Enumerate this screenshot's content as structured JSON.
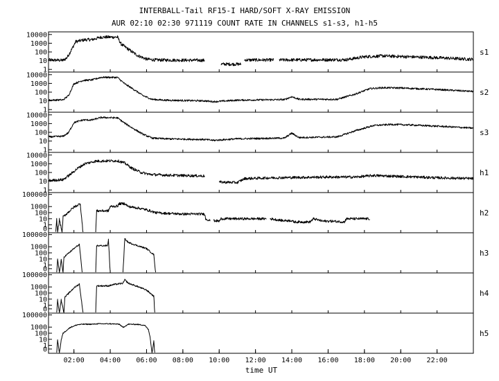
{
  "header": {
    "title_line1": "INTERBALL-Tail RF15-I HARD/SOFT X-RAY EMISSION",
    "title_line2": "AUR 02:10 02:30 971119  COUNT RATE IN CHANNELS s1-s3, h1-h5"
  },
  "chart_data": {
    "type": "line",
    "title": "INTERBALL-Tail RF15-I HARD/SOFT X-RAY EMISSION",
    "subtitle": "AUR 02:10 02:30 971119  COUNT RATE IN CHANNELS s1-s3, h1-h5",
    "xlabel": "time UT",
    "x_ticks": [
      "02:00",
      "04:00",
      "06:00",
      "08:00",
      "10:00",
      "12:00",
      "14:00",
      "16:00",
      "18:00",
      "20:00",
      "22:00"
    ],
    "x_tick_hours": [
      2,
      4,
      6,
      8,
      10,
      12,
      14,
      16,
      18,
      20,
      22
    ],
    "xlim_hours": [
      0.6,
      24
    ],
    "y_scale": "log",
    "panels": [
      {
        "name": "s1",
        "y_ticks": [
          "10000",
          "1000",
          "100",
          "10",
          "1"
        ],
        "y_tick_values": [
          10000,
          1000,
          100,
          10,
          1
        ],
        "ylim": [
          0.5,
          20000
        ],
        "noise": 0.18,
        "series": [
          [
            0.6,
            12
          ],
          [
            1.4,
            11
          ],
          [
            1.6,
            20
          ],
          [
            1.8,
            100
          ],
          [
            2.1,
            1500
          ],
          [
            2.6,
            2500
          ],
          [
            3.0,
            2600
          ],
          [
            3.5,
            5000
          ],
          [
            4.4,
            5000
          ],
          [
            4.6,
            800
          ],
          [
            5.0,
            200
          ],
          [
            5.5,
            40
          ],
          [
            6.0,
            15
          ],
          [
            6.5,
            12
          ],
          [
            9.2,
            11
          ],
          [
            9.25,
            null
          ],
          [
            9.7,
            8
          ],
          [
            9.8,
            null
          ],
          [
            10.1,
            4
          ],
          [
            11.2,
            4
          ],
          [
            11.3,
            null
          ],
          [
            11.4,
            12
          ],
          [
            13.0,
            12
          ],
          [
            13.2,
            null
          ],
          [
            13.3,
            12
          ],
          [
            17.0,
            13
          ],
          [
            18.0,
            28
          ],
          [
            19.0,
            35
          ],
          [
            20.0,
            30
          ],
          [
            22.0,
            22
          ],
          [
            24.0,
            14
          ]
        ]
      },
      {
        "name": "s2",
        "y_ticks": [
          "10000",
          "1000",
          "100",
          "10",
          "1"
        ],
        "y_tick_values": [
          10000,
          1000,
          100,
          10,
          1
        ],
        "ylim": [
          0.5,
          20000
        ],
        "noise": 0.1,
        "series": [
          [
            0.6,
            12
          ],
          [
            1.4,
            13
          ],
          [
            1.7,
            40
          ],
          [
            2.0,
            900
          ],
          [
            2.5,
            2200
          ],
          [
            3.0,
            2500
          ],
          [
            3.5,
            5000
          ],
          [
            4.4,
            4800
          ],
          [
            4.8,
            900
          ],
          [
            5.3,
            200
          ],
          [
            5.8,
            40
          ],
          [
            6.3,
            15
          ],
          [
            7.0,
            12
          ],
          [
            9.2,
            10
          ],
          [
            9.7,
            8
          ],
          [
            11.0,
            12
          ],
          [
            13.6,
            14
          ],
          [
            14.0,
            30
          ],
          [
            14.4,
            15
          ],
          [
            16.5,
            15
          ],
          [
            17.5,
            60
          ],
          [
            18.3,
            250
          ],
          [
            19.0,
            320
          ],
          [
            20.0,
            300
          ],
          [
            22.0,
            200
          ],
          [
            24.0,
            120
          ]
        ]
      },
      {
        "name": "s3",
        "y_ticks": [
          "10000",
          "1000",
          "100",
          "10",
          "1"
        ],
        "y_tick_values": [
          10000,
          1000,
          100,
          10,
          1
        ],
        "ylim": [
          0.5,
          20000
        ],
        "noise": 0.1,
        "series": [
          [
            0.6,
            30
          ],
          [
            1.4,
            35
          ],
          [
            1.7,
            90
          ],
          [
            2.0,
            1300
          ],
          [
            2.5,
            2600
          ],
          [
            3.0,
            2600
          ],
          [
            3.5,
            5000
          ],
          [
            4.4,
            4500
          ],
          [
            4.8,
            1100
          ],
          [
            5.3,
            250
          ],
          [
            5.8,
            60
          ],
          [
            6.3,
            22
          ],
          [
            7.0,
            18
          ],
          [
            9.2,
            15
          ],
          [
            9.7,
            12
          ],
          [
            11.0,
            18
          ],
          [
            13.6,
            22
          ],
          [
            14.0,
            80
          ],
          [
            14.4,
            25
          ],
          [
            16.5,
            30
          ],
          [
            17.5,
            150
          ],
          [
            18.5,
            600
          ],
          [
            19.5,
            800
          ],
          [
            20.5,
            700
          ],
          [
            22.5,
            450
          ],
          [
            24.0,
            300
          ]
        ]
      },
      {
        "name": "h1",
        "y_ticks": [
          "10000",
          "1000",
          "100",
          "10",
          "1"
        ],
        "y_tick_values": [
          10000,
          1000,
          100,
          10,
          1
        ],
        "ylim": [
          0.5,
          20000
        ],
        "noise": 0.15,
        "series": [
          [
            0.6,
            12
          ],
          [
            1.4,
            15
          ],
          [
            1.8,
            60
          ],
          [
            2.2,
            300
          ],
          [
            2.6,
            1000
          ],
          [
            3.2,
            2000
          ],
          [
            4.4,
            2200
          ],
          [
            4.8,
            1200
          ],
          [
            5.2,
            300
          ],
          [
            5.7,
            100
          ],
          [
            6.2,
            60
          ],
          [
            7.0,
            50
          ],
          [
            8.0,
            45
          ],
          [
            9.2,
            40
          ],
          [
            9.5,
            null
          ],
          [
            9.7,
            20
          ],
          [
            9.8,
            null
          ],
          [
            10.0,
            8
          ],
          [
            11.0,
            7
          ],
          [
            11.4,
            20
          ],
          [
            13.0,
            25
          ],
          [
            16.0,
            30
          ],
          [
            17.5,
            30
          ],
          [
            18.5,
            45
          ],
          [
            20.0,
            35
          ],
          [
            22.0,
            25
          ],
          [
            24.0,
            20
          ]
        ]
      },
      {
        "name": "h2",
        "y_ticks": [
          "100000",
          "1000",
          "100",
          "10",
          "1",
          "0"
        ],
        "y_tick_values": [
          100000,
          1000,
          100,
          10,
          1,
          0.25
        ],
        "ylim": [
          0.05,
          200000
        ],
        "noise": 0.2,
        "series": [
          [
            0.9,
            null
          ],
          [
            1.0,
            0.05
          ],
          [
            1.05,
            8
          ],
          [
            1.1,
            0.05
          ],
          [
            1.2,
            8
          ],
          [
            1.35,
            0.05
          ],
          [
            1.4,
            20
          ],
          [
            2.0,
            800
          ],
          [
            2.35,
            3000
          ],
          [
            2.5,
            0.05
          ],
          [
            2.6,
            null
          ],
          [
            3.2,
            0.05
          ],
          [
            3.25,
            200
          ],
          [
            3.9,
            200
          ],
          [
            4.0,
            1000
          ],
          [
            4.4,
            1200
          ],
          [
            4.5,
            3000
          ],
          [
            4.8,
            3000
          ],
          [
            5.0,
            1000
          ],
          [
            5.5,
            600
          ],
          [
            6.0,
            300
          ],
          [
            6.5,
            100
          ],
          [
            7.0,
            80
          ],
          [
            8.0,
            60
          ],
          [
            9.2,
            60
          ],
          [
            9.25,
            10
          ],
          [
            9.5,
            5
          ],
          [
            9.55,
            null
          ],
          [
            9.7,
            5
          ],
          [
            10.0,
            4
          ],
          [
            10.1,
            10
          ],
          [
            12.6,
            10
          ],
          [
            12.7,
            null
          ],
          [
            12.8,
            10
          ],
          [
            13.5,
            5
          ],
          [
            14.0,
            5
          ],
          [
            14.1,
            3
          ],
          [
            15.0,
            3
          ],
          [
            15.2,
            10
          ],
          [
            15.7,
            4
          ],
          [
            16.2,
            4
          ],
          [
            16.9,
            3
          ],
          [
            17.0,
            10
          ],
          [
            18.3,
            10
          ],
          [
            18.35,
            null
          ]
        ]
      },
      {
        "name": "h3",
        "y_ticks": [
          "100000",
          "1000",
          "100",
          "10",
          "1",
          "0"
        ],
        "y_tick_values": [
          100000,
          1000,
          100,
          10,
          1,
          0.25
        ],
        "ylim": [
          0.05,
          200000
        ],
        "noise": 0.12,
        "series": [
          [
            1.0,
            null
          ],
          [
            1.05,
            0.05
          ],
          [
            1.1,
            8
          ],
          [
            1.2,
            0.05
          ],
          [
            1.3,
            8
          ],
          [
            1.4,
            0.05
          ],
          [
            1.45,
            20
          ],
          [
            2.0,
            500
          ],
          [
            2.3,
            2500
          ],
          [
            2.45,
            0.05
          ],
          [
            2.55,
            null
          ],
          [
            3.2,
            0.05
          ],
          [
            3.25,
            1500
          ],
          [
            3.85,
            1500
          ],
          [
            3.9,
            15000
          ],
          [
            4.0,
            0.05
          ],
          [
            4.1,
            null
          ],
          [
            4.7,
            0.05
          ],
          [
            4.8,
            20000
          ],
          [
            5.0,
            5000
          ],
          [
            5.5,
            1500
          ],
          [
            6.0,
            500
          ],
          [
            6.4,
            50
          ],
          [
            6.5,
            0.05
          ],
          [
            6.55,
            null
          ]
        ]
      },
      {
        "name": "h4",
        "y_ticks": [
          "100000",
          "1000",
          "100",
          "10",
          "1",
          "0"
        ],
        "y_tick_values": [
          100000,
          1000,
          100,
          10,
          1,
          0.25
        ],
        "ylim": [
          0.05,
          200000
        ],
        "noise": 0.12,
        "series": [
          [
            1.0,
            null
          ],
          [
            1.05,
            0.05
          ],
          [
            1.1,
            8
          ],
          [
            1.2,
            0.05
          ],
          [
            1.3,
            8
          ],
          [
            1.45,
            0.05
          ],
          [
            1.5,
            20
          ],
          [
            2.0,
            700
          ],
          [
            2.3,
            3000
          ],
          [
            2.5,
            0.05
          ],
          [
            2.6,
            null
          ],
          [
            3.2,
            0.05
          ],
          [
            3.25,
            1500
          ],
          [
            3.9,
            1500
          ],
          [
            4.2,
            2500
          ],
          [
            4.7,
            4000
          ],
          [
            4.8,
            15000
          ],
          [
            5.0,
            4000
          ],
          [
            5.5,
            1200
          ],
          [
            6.0,
            300
          ],
          [
            6.4,
            30
          ],
          [
            6.45,
            0.05
          ],
          [
            6.5,
            null
          ]
        ]
      },
      {
        "name": "h5",
        "y_ticks": [
          "100000",
          "1000",
          "100",
          "10",
          "1",
          "0"
        ],
        "y_tick_values": [
          100000,
          1000,
          100,
          10,
          1,
          0.25
        ],
        "ylim": [
          0.05,
          200000
        ],
        "noise": 0.08,
        "series": [
          [
            1.0,
            null
          ],
          [
            1.05,
            0.05
          ],
          [
            1.1,
            8
          ],
          [
            1.2,
            0.05
          ],
          [
            1.3,
            8
          ],
          [
            1.4,
            100
          ],
          [
            1.8,
            900
          ],
          [
            2.2,
            2500
          ],
          [
            2.5,
            3000
          ],
          [
            3.0,
            3000
          ],
          [
            3.3,
            3500
          ],
          [
            4.0,
            3500
          ],
          [
            4.5,
            3000
          ],
          [
            4.7,
            900
          ],
          [
            5.0,
            3000
          ],
          [
            5.5,
            2800
          ],
          [
            5.9,
            2000
          ],
          [
            6.1,
            400
          ],
          [
            6.2,
            20
          ],
          [
            6.3,
            0.05
          ],
          [
            6.4,
            5
          ],
          [
            6.45,
            0.05
          ],
          [
            6.5,
            null
          ]
        ]
      }
    ]
  }
}
